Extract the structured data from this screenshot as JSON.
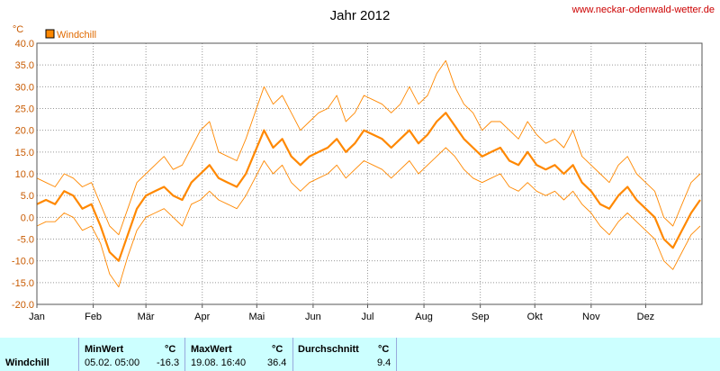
{
  "chart_data": {
    "type": "line",
    "title": "Jahr 2012",
    "source_url": "www.neckar-odenwald-wetter.de",
    "unit": "°C",
    "legend": [
      "Windchill"
    ],
    "ylim": [
      -20,
      40
    ],
    "yticks": [
      "40.0",
      "35.0",
      "30.0",
      "25.0",
      "20.0",
      "15.0",
      "10.0",
      "5.0",
      "0.0",
      "-5.0",
      "-10.0",
      "-15.0",
      "-20.0"
    ],
    "months": [
      "Jan",
      "Feb",
      "Mär",
      "Apr",
      "Mai",
      "Jun",
      "Jul",
      "Aug",
      "Sep",
      "Okt",
      "Nov",
      "Dez"
    ],
    "grid": true,
    "colors": {
      "series": "#ff8800",
      "axis_text": "#c85a00",
      "grid": "#888888"
    },
    "series": [
      {
        "name": "Windchill",
        "role": "mean",
        "x_day": [
          0,
          5,
          10,
          15,
          20,
          25,
          30,
          35,
          40,
          45,
          50,
          55,
          60,
          65,
          70,
          75,
          80,
          85,
          90,
          95,
          100,
          105,
          110,
          115,
          120,
          125,
          130,
          135,
          140,
          145,
          150,
          155,
          160,
          165,
          170,
          175,
          180,
          185,
          190,
          195,
          200,
          205,
          210,
          215,
          220,
          225,
          230,
          235,
          240,
          245,
          250,
          255,
          260,
          265,
          270,
          275,
          280,
          285,
          290,
          295,
          300,
          305,
          310,
          315,
          320,
          325,
          330,
          335,
          340,
          345,
          350,
          355,
          360,
          365
        ],
        "values": [
          3,
          4,
          3,
          6,
          5,
          2,
          3,
          -2,
          -8,
          -10,
          -4,
          2,
          5,
          6,
          7,
          5,
          4,
          8,
          10,
          12,
          9,
          8,
          7,
          10,
          15,
          20,
          16,
          18,
          14,
          12,
          14,
          15,
          16,
          18,
          15,
          17,
          20,
          19,
          18,
          16,
          18,
          20,
          17,
          19,
          22,
          24,
          21,
          18,
          16,
          14,
          15,
          16,
          13,
          12,
          15,
          12,
          11,
          12,
          10,
          12,
          8,
          6,
          3,
          2,
          5,
          7,
          4,
          2,
          0,
          -5,
          -7,
          -3,
          1,
          4
        ]
      },
      {
        "name": "Windchill",
        "role": "max",
        "x_day": [
          0,
          5,
          10,
          15,
          20,
          25,
          30,
          35,
          40,
          45,
          50,
          55,
          60,
          65,
          70,
          75,
          80,
          85,
          90,
          95,
          100,
          105,
          110,
          115,
          120,
          125,
          130,
          135,
          140,
          145,
          150,
          155,
          160,
          165,
          170,
          175,
          180,
          185,
          190,
          195,
          200,
          205,
          210,
          215,
          220,
          225,
          230,
          235,
          240,
          245,
          250,
          255,
          260,
          265,
          270,
          275,
          280,
          285,
          290,
          295,
          300,
          305,
          310,
          315,
          320,
          325,
          330,
          335,
          340,
          345,
          350,
          355,
          360,
          365
        ],
        "values": [
          9,
          8,
          7,
          10,
          9,
          7,
          8,
          3,
          -2,
          -4,
          2,
          8,
          10,
          12,
          14,
          11,
          12,
          16,
          20,
          22,
          15,
          14,
          13,
          18,
          24,
          30,
          26,
          28,
          24,
          20,
          22,
          24,
          25,
          28,
          22,
          24,
          28,
          27,
          26,
          24,
          26,
          30,
          26,
          28,
          33,
          36,
          30,
          26,
          24,
          20,
          22,
          22,
          20,
          18,
          22,
          19,
          17,
          18,
          16,
          20,
          14,
          12,
          10,
          8,
          12,
          14,
          10,
          8,
          6,
          0,
          -2,
          3,
          8,
          10
        ]
      },
      {
        "name": "Windchill",
        "role": "min",
        "x_day": [
          0,
          5,
          10,
          15,
          20,
          25,
          30,
          35,
          40,
          45,
          50,
          55,
          60,
          65,
          70,
          75,
          80,
          85,
          90,
          95,
          100,
          105,
          110,
          115,
          120,
          125,
          130,
          135,
          140,
          145,
          150,
          155,
          160,
          165,
          170,
          175,
          180,
          185,
          190,
          195,
          200,
          205,
          210,
          215,
          220,
          225,
          230,
          235,
          240,
          245,
          250,
          255,
          260,
          265,
          270,
          275,
          280,
          285,
          290,
          295,
          300,
          305,
          310,
          315,
          320,
          325,
          330,
          335,
          340,
          345,
          350,
          355,
          360,
          365
        ],
        "values": [
          -2,
          -1,
          -1,
          1,
          0,
          -3,
          -2,
          -6,
          -13,
          -16,
          -9,
          -3,
          0,
          1,
          2,
          0,
          -2,
          3,
          4,
          6,
          4,
          3,
          2,
          5,
          9,
          13,
          10,
          12,
          8,
          6,
          8,
          9,
          10,
          12,
          9,
          11,
          13,
          12,
          11,
          9,
          11,
          13,
          10,
          12,
          14,
          16,
          14,
          11,
          9,
          8,
          9,
          10,
          7,
          6,
          8,
          6,
          5,
          6,
          4,
          6,
          3,
          1,
          -2,
          -4,
          -1,
          1,
          -1,
          -3,
          -5,
          -10,
          -12,
          -8,
          -4,
          -2
        ]
      }
    ]
  },
  "stats": {
    "row_label": "Windchill",
    "min": {
      "header": "MinWert",
      "unit": "°C",
      "datetime": "05.02.  05:00",
      "value": "-16.3"
    },
    "max": {
      "header": "MaxWert",
      "unit": "°C",
      "datetime": "19.08.  16:40",
      "value": "36.4"
    },
    "avg": {
      "header": "Durchschnitt",
      "unit": "°C",
      "value": "9.4"
    }
  }
}
